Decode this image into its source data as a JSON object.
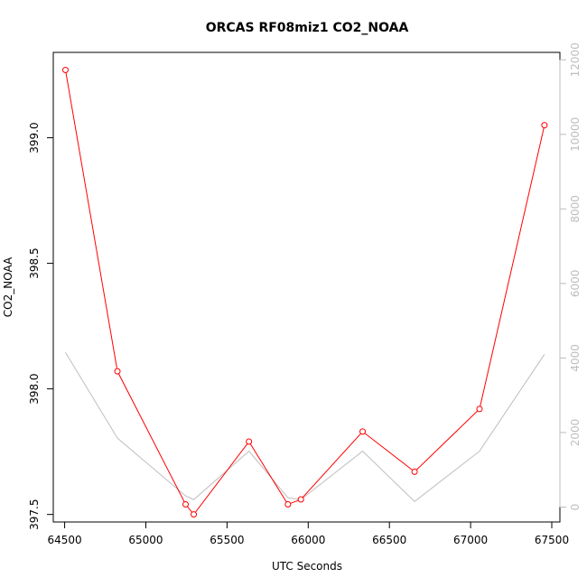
{
  "chart_data": {
    "type": "line",
    "title": "ORCAS RF08miz1 CO2_NOAA",
    "xlabel": "UTC Seconds",
    "ylabel": "CO2_NOAA",
    "xlim": [
      64430,
      67550
    ],
    "ylim": [
      397.47,
      399.34
    ],
    "ylim_right": [
      -400,
      12200
    ],
    "x_ticks": [
      64500,
      65000,
      65500,
      66000,
      66500,
      67000,
      67500
    ],
    "y_ticks": [
      397.5,
      398.0,
      398.5,
      399.0
    ],
    "y_ticks_right": [
      0,
      2000,
      4000,
      6000,
      8000,
      10000,
      12000
    ],
    "grid": false,
    "colors": {
      "primary": "#ff0000",
      "secondary": "#bebebe",
      "axis": "#000000",
      "right_axis": "#bdbdbd"
    },
    "series": [
      {
        "axis": "left",
        "marker": "circle",
        "x": [
          64505,
          64825,
          65245,
          65295,
          65635,
          65875,
          65955,
          66335,
          66655,
          67055,
          67455
        ],
        "y": [
          399.27,
          398.07,
          397.54,
          397.5,
          397.79,
          397.54,
          397.56,
          397.83,
          397.67,
          397.92,
          399.05
        ]
      },
      {
        "axis": "right",
        "marker": "none",
        "x": [
          64505,
          64825,
          65245,
          65295,
          65635,
          65875,
          65955,
          66335,
          66655,
          67055,
          67455
        ],
        "y": [
          4150,
          1850,
          300,
          200,
          1500,
          250,
          200,
          1500,
          150,
          1500,
          4100
        ]
      }
    ]
  }
}
